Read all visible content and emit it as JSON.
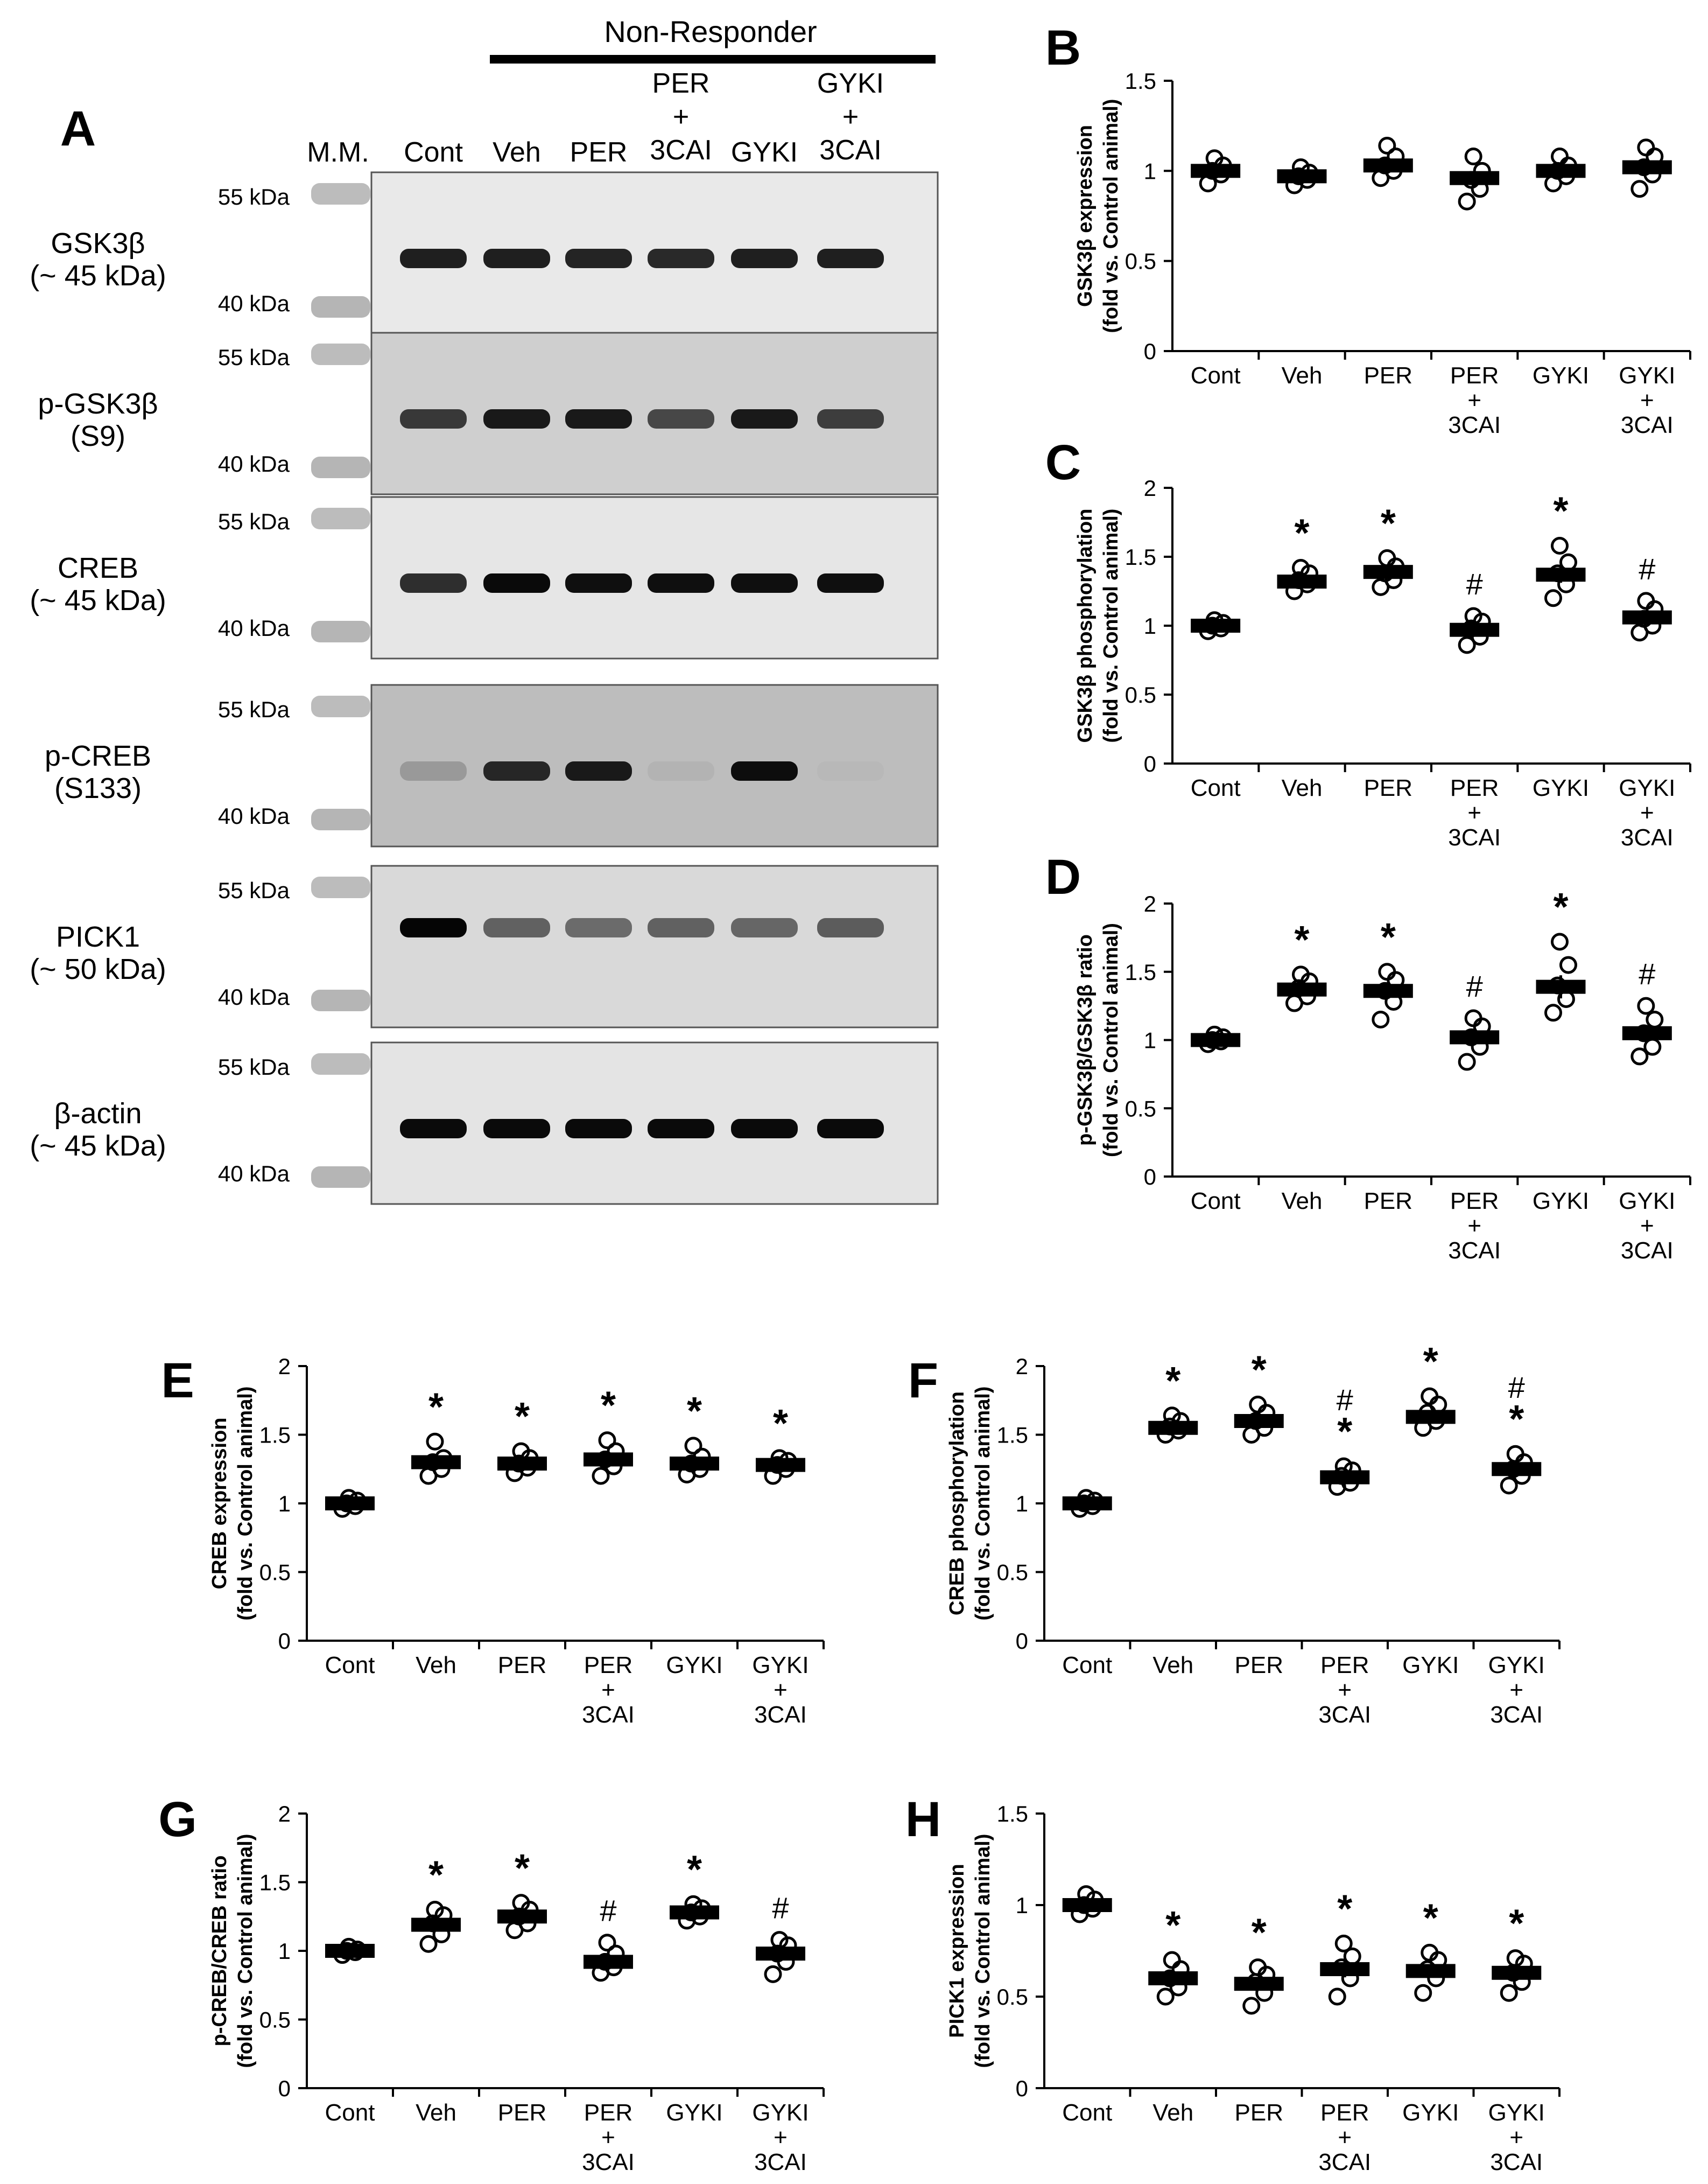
{
  "blot": {
    "panel_letter": "A",
    "group_label": "Non-Responder",
    "marker_label": "M.M.",
    "lanes": [
      {
        "lines": [
          "Cont"
        ]
      },
      {
        "lines": [
          "Veh"
        ]
      },
      {
        "lines": [
          "PER"
        ]
      },
      {
        "lines": [
          "PER",
          "+",
          "3CAI"
        ]
      },
      {
        "lines": [
          "GYKI"
        ]
      },
      {
        "lines": [
          "GYKI",
          "+",
          "3CAI"
        ]
      }
    ],
    "rows": [
      {
        "label": [
          "GSK3β",
          "(~ 45 kDa)"
        ],
        "top_kda": "55 kDa",
        "bottom_kda": "40 kDa",
        "band_intensity": [
          0.88,
          0.88,
          0.86,
          0.84,
          0.88,
          0.88
        ]
      },
      {
        "label": [
          "p-GSK3β",
          "(S9)"
        ],
        "top_kda": "55 kDa",
        "bottom_kda": "40 kDa",
        "band_intensity": [
          0.78,
          0.9,
          0.9,
          0.72,
          0.9,
          0.76
        ]
      },
      {
        "label": [
          "CREB",
          "(~ 45 kDa)"
        ],
        "top_kda": "55 kDa",
        "bottom_kda": "40 kDa",
        "band_intensity": [
          0.82,
          0.96,
          0.94,
          0.94,
          0.94,
          0.94
        ]
      },
      {
        "label": [
          "p-CREB",
          "(S133)"
        ],
        "top_kda": "55 kDa",
        "bottom_kda": "40 kDa",
        "band_intensity": [
          0.4,
          0.85,
          0.9,
          0.3,
          0.95,
          0.28
        ]
      },
      {
        "label": [
          "PICK1",
          "(~ 50 kDa)"
        ],
        "top_kda": "55 kDa",
        "bottom_kda": "40 kDa",
        "band_intensity": [
          0.98,
          0.62,
          0.58,
          0.62,
          0.6,
          0.64
        ]
      },
      {
        "label": [
          "β-actin",
          "(~ 45 kDa)"
        ],
        "top_kda": "55 kDa",
        "bottom_kda": "40 kDa",
        "band_intensity": [
          0.96,
          0.96,
          0.96,
          0.96,
          0.96,
          0.96
        ]
      }
    ]
  },
  "chart_data": [
    {
      "panel": "B",
      "type": "scatter",
      "ylabel": [
        "GSK3β expression",
        "(fold vs. Control animal)"
      ],
      "yticks": [
        "0",
        "0.5",
        "1",
        "1.5"
      ],
      "ylim": [
        0,
        1.5
      ],
      "categories": [
        [
          "Cont"
        ],
        [
          "Veh"
        ],
        [
          "PER"
        ],
        [
          "PER",
          "+",
          "3CAI"
        ],
        [
          "GYKI"
        ],
        [
          "GYKI",
          "+",
          "3CAI"
        ]
      ],
      "means": [
        1.0,
        0.97,
        1.03,
        0.96,
        1.0,
        1.02
      ],
      "points": [
        [
          0.93,
          0.98,
          1.0,
          1.03,
          1.07
        ],
        [
          0.92,
          0.95,
          0.97,
          0.99,
          1.02
        ],
        [
          0.96,
          1.0,
          1.03,
          1.08,
          1.14
        ],
        [
          0.83,
          0.9,
          0.95,
          1.0,
          1.08
        ],
        [
          0.93,
          0.97,
          1.0,
          1.03,
          1.08
        ],
        [
          0.9,
          0.98,
          1.02,
          1.08,
          1.13
        ]
      ],
      "annotations": [
        [],
        [],
        [],
        [],
        [],
        []
      ]
    },
    {
      "panel": "C",
      "type": "scatter",
      "ylabel": [
        "GSK3β phosphorylation",
        "(fold vs. Control animal)"
      ],
      "yticks": [
        "0",
        "0.5",
        "1",
        "1.5",
        "2"
      ],
      "ylim": [
        0,
        2
      ],
      "categories": [
        [
          "Cont"
        ],
        [
          "Veh"
        ],
        [
          "PER"
        ],
        [
          "PER",
          "+",
          "3CAI"
        ],
        [
          "GYKI"
        ],
        [
          "GYKI",
          "+",
          "3CAI"
        ]
      ],
      "means": [
        1.0,
        1.32,
        1.39,
        0.97,
        1.37,
        1.06
      ],
      "points": [
        [
          0.96,
          0.98,
          1.0,
          1.02,
          1.04
        ],
        [
          1.25,
          1.3,
          1.33,
          1.38,
          1.42
        ],
        [
          1.28,
          1.33,
          1.38,
          1.43,
          1.49
        ],
        [
          0.86,
          0.92,
          0.98,
          1.03,
          1.07
        ],
        [
          1.2,
          1.3,
          1.38,
          1.46,
          1.58
        ],
        [
          0.95,
          1.0,
          1.05,
          1.12,
          1.18
        ]
      ],
      "annotations": [
        [],
        [
          "*"
        ],
        [
          "*"
        ],
        [
          "#"
        ],
        [
          "*"
        ],
        [
          "#"
        ]
      ]
    },
    {
      "panel": "D",
      "type": "scatter",
      "ylabel": [
        "p-GSK3β/GSK3β ratio",
        "(fold vs. Control animal)"
      ],
      "yticks": [
        "0",
        "0.5",
        "1",
        "1.5",
        "2"
      ],
      "ylim": [
        0,
        2
      ],
      "categories": [
        [
          "Cont"
        ],
        [
          "Veh"
        ],
        [
          "PER"
        ],
        [
          "PER",
          "+",
          "3CAI"
        ],
        [
          "GYKI"
        ],
        [
          "GYKI",
          "+",
          "3CAI"
        ]
      ],
      "means": [
        1.0,
        1.37,
        1.36,
        1.02,
        1.39,
        1.05
      ],
      "points": [
        [
          0.97,
          0.99,
          1.0,
          1.02,
          1.04
        ],
        [
          1.27,
          1.32,
          1.38,
          1.43,
          1.48
        ],
        [
          1.15,
          1.28,
          1.36,
          1.44,
          1.5
        ],
        [
          0.84,
          0.95,
          1.02,
          1.1,
          1.16
        ],
        [
          1.2,
          1.3,
          1.4,
          1.55,
          1.72
        ],
        [
          0.88,
          0.95,
          1.05,
          1.15,
          1.25
        ]
      ],
      "annotations": [
        [],
        [
          "*"
        ],
        [
          "*"
        ],
        [
          "#"
        ],
        [
          "*"
        ],
        [
          "#"
        ]
      ]
    },
    {
      "panel": "E",
      "type": "scatter",
      "ylabel": [
        "CREB expression",
        "(fold vs. Control animal)"
      ],
      "yticks": [
        "0",
        "0.5",
        "1",
        "1.5",
        "2"
      ],
      "ylim": [
        0,
        2
      ],
      "categories": [
        [
          "Cont"
        ],
        [
          "Veh"
        ],
        [
          "PER"
        ],
        [
          "PER",
          "+",
          "3CAI"
        ],
        [
          "GYKI"
        ],
        [
          "GYKI",
          "+",
          "3CAI"
        ]
      ],
      "means": [
        1.0,
        1.3,
        1.29,
        1.32,
        1.29,
        1.28
      ],
      "points": [
        [
          0.96,
          0.98,
          1.0,
          1.02,
          1.04
        ],
        [
          1.2,
          1.25,
          1.3,
          1.33,
          1.45
        ],
        [
          1.22,
          1.26,
          1.29,
          1.33,
          1.38
        ],
        [
          1.2,
          1.27,
          1.32,
          1.38,
          1.46
        ],
        [
          1.21,
          1.25,
          1.29,
          1.34,
          1.42
        ],
        [
          1.2,
          1.25,
          1.28,
          1.31,
          1.33
        ]
      ],
      "annotations": [
        [],
        [
          "*"
        ],
        [
          "*"
        ],
        [
          "*"
        ],
        [
          "*"
        ],
        [
          "*"
        ]
      ]
    },
    {
      "panel": "F",
      "type": "scatter",
      "ylabel": [
        "CREB phosphorylation",
        "(fold vs. Control animal)"
      ],
      "yticks": [
        "0",
        "0.5",
        "1",
        "1.5",
        "2"
      ],
      "ylim": [
        0,
        2
      ],
      "categories": [
        [
          "Cont"
        ],
        [
          "Veh"
        ],
        [
          "PER"
        ],
        [
          "PER",
          "+",
          "3CAI"
        ],
        [
          "GYKI"
        ],
        [
          "GYKI",
          "+",
          "3CAI"
        ]
      ],
      "means": [
        1.0,
        1.55,
        1.6,
        1.19,
        1.63,
        1.25
      ],
      "points": [
        [
          0.96,
          0.98,
          1.0,
          1.02,
          1.04
        ],
        [
          1.5,
          1.53,
          1.56,
          1.6,
          1.64
        ],
        [
          1.5,
          1.55,
          1.6,
          1.66,
          1.72
        ],
        [
          1.12,
          1.15,
          1.2,
          1.24,
          1.27
        ],
        [
          1.55,
          1.6,
          1.66,
          1.72,
          1.78
        ],
        [
          1.13,
          1.2,
          1.25,
          1.3,
          1.36
        ]
      ],
      "annotations": [
        [],
        [
          "*"
        ],
        [
          "*"
        ],
        [
          "#",
          "*"
        ],
        [
          "*"
        ],
        [
          "#",
          "*"
        ]
      ]
    },
    {
      "panel": "G",
      "type": "scatter",
      "ylabel": [
        "p-CREB/CREB ratio",
        "(fold vs. Control animal)"
      ],
      "yticks": [
        "0",
        "0.5",
        "1",
        "1.5",
        "2"
      ],
      "ylim": [
        0,
        2
      ],
      "categories": [
        [
          "Cont"
        ],
        [
          "Veh"
        ],
        [
          "PER"
        ],
        [
          "PER",
          "+",
          "3CAI"
        ],
        [
          "GYKI"
        ],
        [
          "GYKI",
          "+",
          "3CAI"
        ]
      ],
      "means": [
        1.0,
        1.19,
        1.25,
        0.92,
        1.28,
        0.98
      ],
      "points": [
        [
          0.97,
          0.99,
          1.0,
          1.01,
          1.03
        ],
        [
          1.05,
          1.12,
          1.2,
          1.26,
          1.3
        ],
        [
          1.15,
          1.2,
          1.25,
          1.3,
          1.35
        ],
        [
          0.84,
          0.88,
          0.92,
          0.98,
          1.06
        ],
        [
          1.22,
          1.25,
          1.28,
          1.31,
          1.34
        ],
        [
          0.83,
          0.92,
          0.98,
          1.04,
          1.08
        ]
      ],
      "annotations": [
        [],
        [
          "*"
        ],
        [
          "*"
        ],
        [
          "#"
        ],
        [
          "*"
        ],
        [
          "#"
        ]
      ]
    },
    {
      "panel": "H",
      "type": "scatter",
      "ylabel": [
        "PICK1 expression",
        "(fold vs. Control animal)"
      ],
      "yticks": [
        "0",
        "0.5",
        "1",
        "1.5"
      ],
      "ylim": [
        0,
        1.5
      ],
      "categories": [
        [
          "Cont"
        ],
        [
          "Veh"
        ],
        [
          "PER"
        ],
        [
          "PER",
          "+",
          "3CAI"
        ],
        [
          "GYKI"
        ],
        [
          "GYKI",
          "+",
          "3CAI"
        ]
      ],
      "means": [
        1.0,
        0.6,
        0.57,
        0.65,
        0.64,
        0.63
      ],
      "points": [
        [
          0.95,
          0.98,
          1.0,
          1.03,
          1.06
        ],
        [
          0.5,
          0.55,
          0.6,
          0.65,
          0.7
        ],
        [
          0.45,
          0.52,
          0.58,
          0.62,
          0.66
        ],
        [
          0.5,
          0.6,
          0.66,
          0.72,
          0.79
        ],
        [
          0.52,
          0.6,
          0.65,
          0.7,
          0.74
        ],
        [
          0.52,
          0.58,
          0.63,
          0.68,
          0.71
        ]
      ],
      "annotations": [
        [],
        [
          "*"
        ],
        [
          "*"
        ],
        [
          "*"
        ],
        [
          "*"
        ],
        [
          "*"
        ]
      ]
    }
  ]
}
